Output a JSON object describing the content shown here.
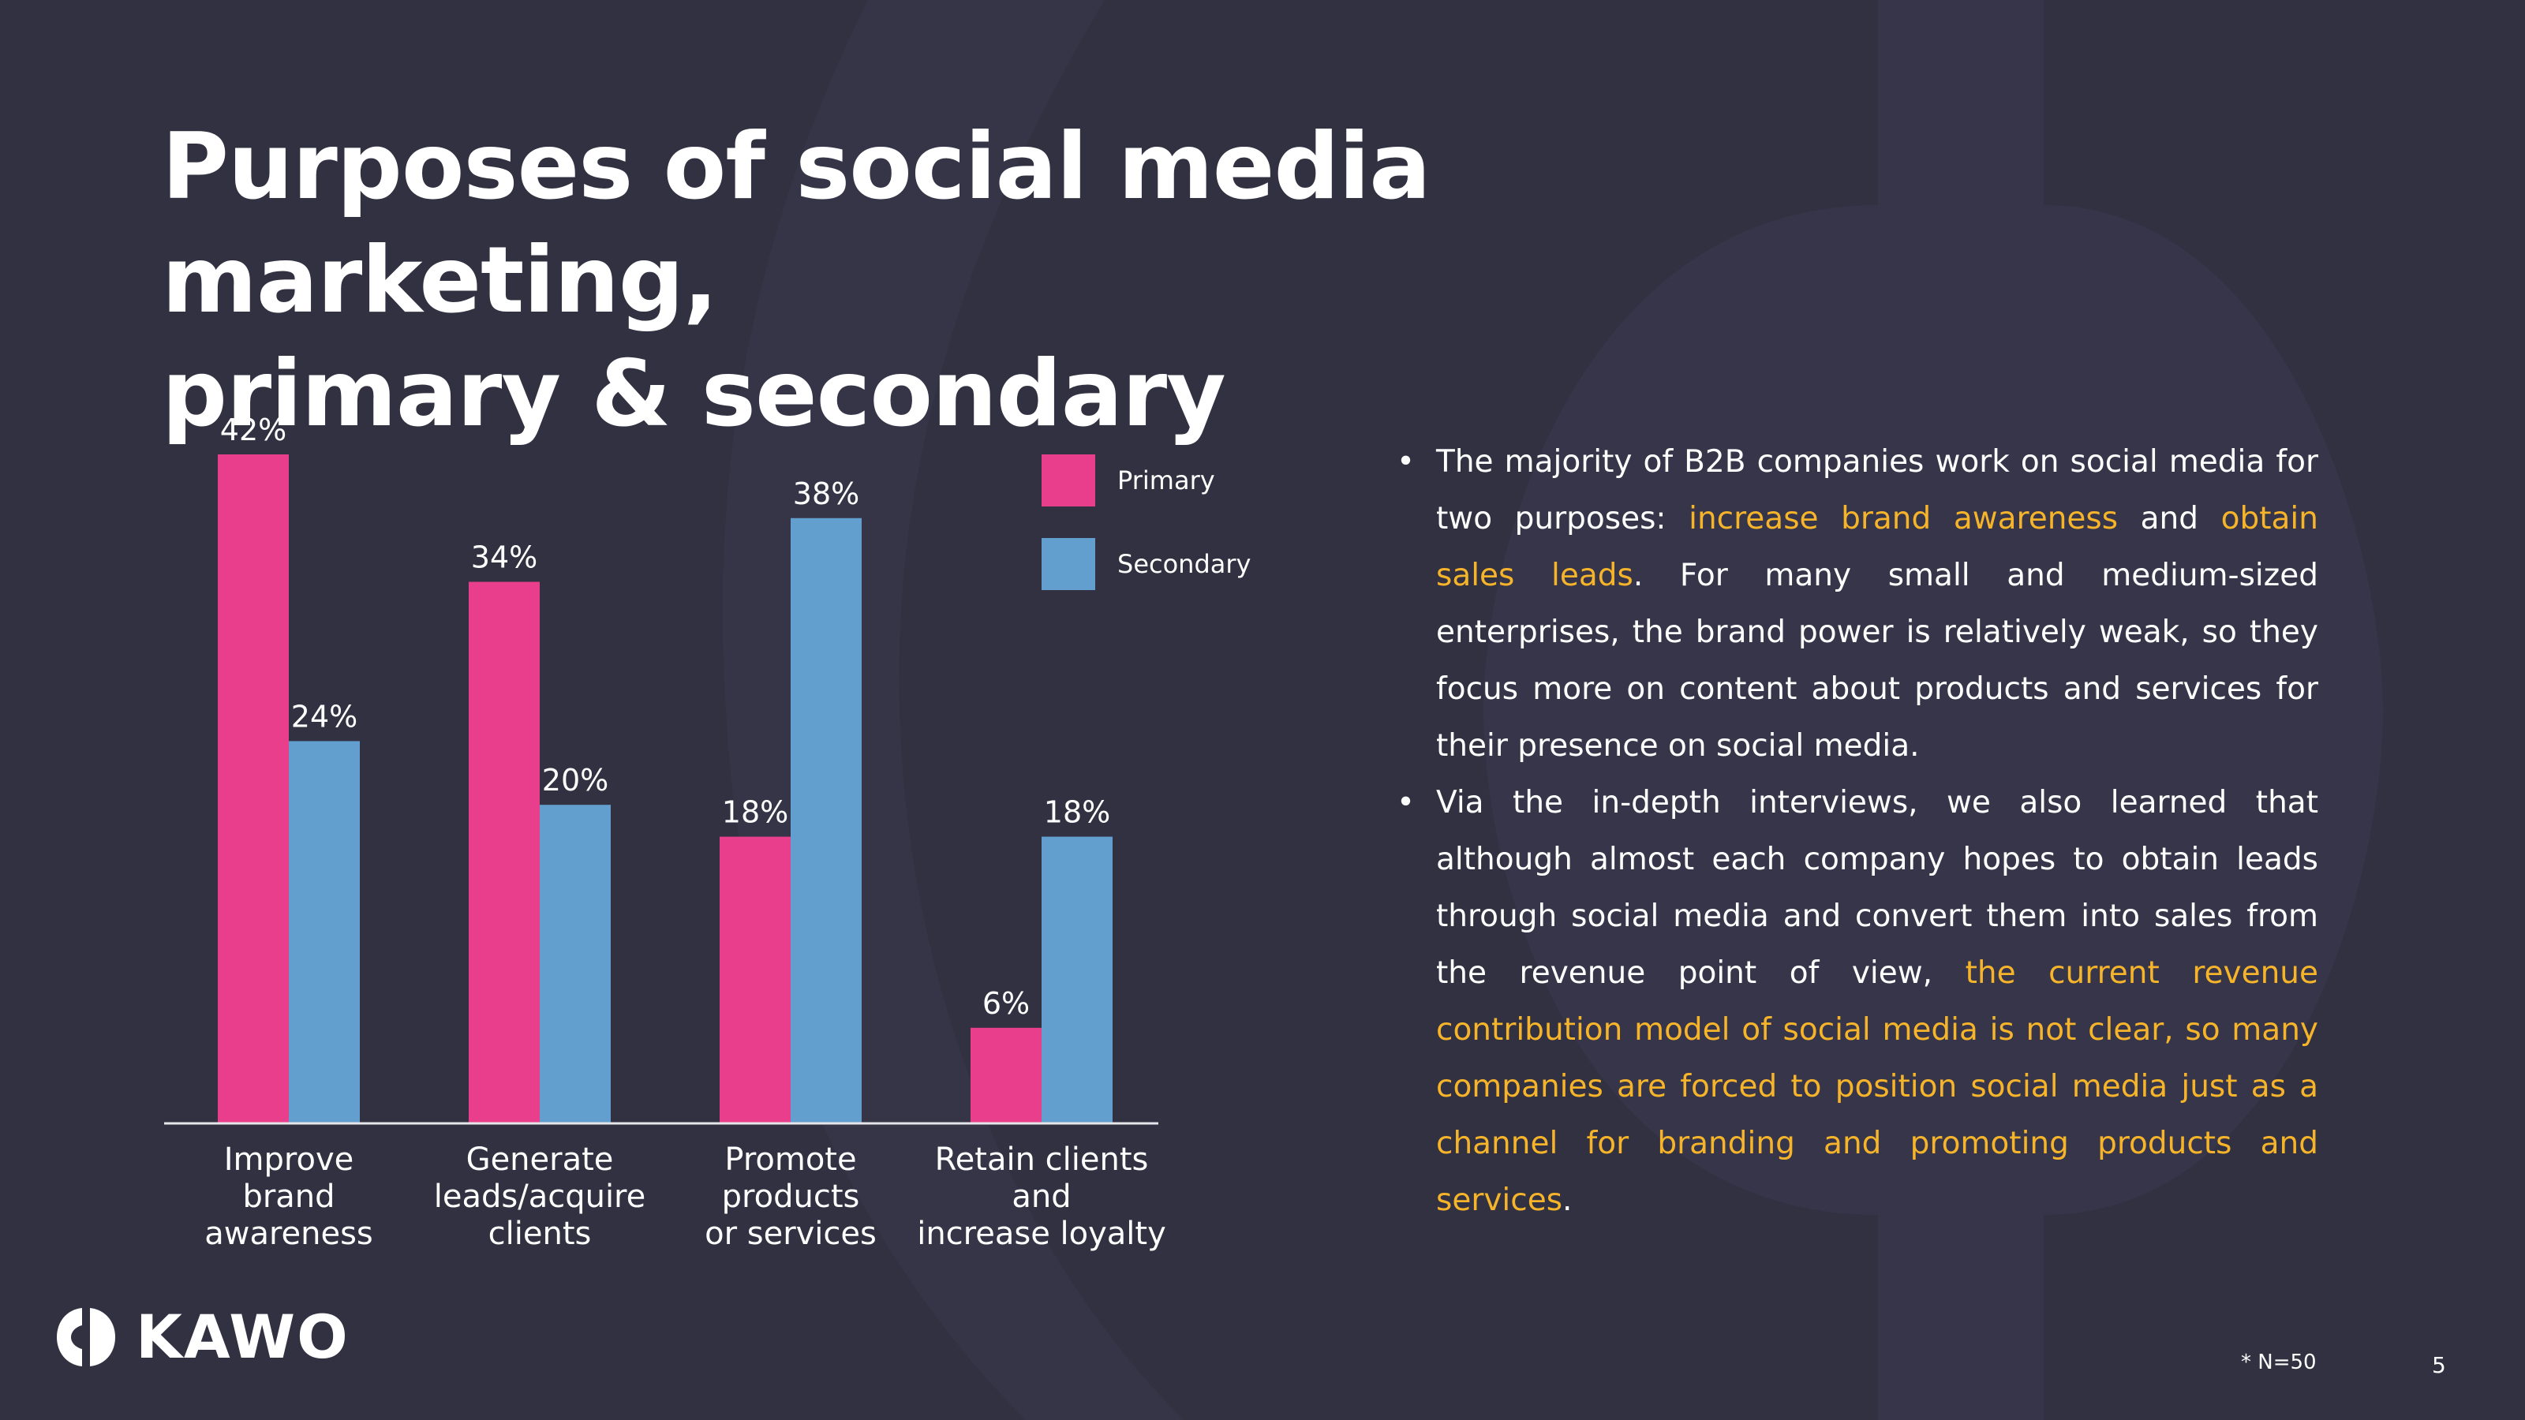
{
  "slide": {
    "title_line1": "Purposes of social media marketing,",
    "title_line2": "primary & secondary",
    "footnote": "* N=50",
    "page_number": "5",
    "logo_text": "KAWO"
  },
  "colors": {
    "background": "#323141",
    "primary": "#e83e8c",
    "secondary": "#629fce",
    "highlight": "#f5b42a"
  },
  "legend": [
    {
      "label": "Primary"
    },
    {
      "label": "Secondary"
    }
  ],
  "chart_data": {
    "type": "bar",
    "categories": [
      "Improve brand awareness",
      "Generate leads/acquire clients",
      "Promote products or services",
      "Retain clients and increase loyalty"
    ],
    "category_lines": [
      [
        "Improve",
        "brand",
        "awareness"
      ],
      [
        "Generate",
        "leads/acquire",
        "clients"
      ],
      [
        "Promote",
        "products",
        "or services"
      ],
      [
        "Retain clients and",
        "increase loyalty"
      ]
    ],
    "series": [
      {
        "name": "Primary",
        "values": [
          42,
          34,
          18,
          6
        ]
      },
      {
        "name": "Secondary",
        "values": [
          24,
          20,
          38,
          18
        ]
      }
    ],
    "value_suffix": "%",
    "ylim": [
      0,
      42
    ],
    "grid": false,
    "legend_position": "top-right"
  },
  "bullets": [
    {
      "segments": [
        {
          "text": "The majority of B2B companies work on social media for two purposes: ",
          "highlight": false
        },
        {
          "text": "increase brand awareness",
          "highlight": true
        },
        {
          "text": " and ",
          "highlight": false
        },
        {
          "text": "obtain sales leads",
          "highlight": true
        },
        {
          "text": ". For many small and medium-sized enterprises, the brand power is relatively weak, so they focus more on content about products and services for their presence on social media.",
          "highlight": false
        }
      ]
    },
    {
      "segments": [
        {
          "text": "Via the in-depth interviews, we also learned that although almost each company hopes to obtain leads through social media and convert them into sales from the revenue point of view, ",
          "highlight": false
        },
        {
          "text": "the current revenue contribution model of social media is not clear, so many companies are forced to position social media just as a channel for branding and promoting products and services",
          "highlight": true
        },
        {
          "text": ".",
          "highlight": false
        }
      ]
    }
  ]
}
